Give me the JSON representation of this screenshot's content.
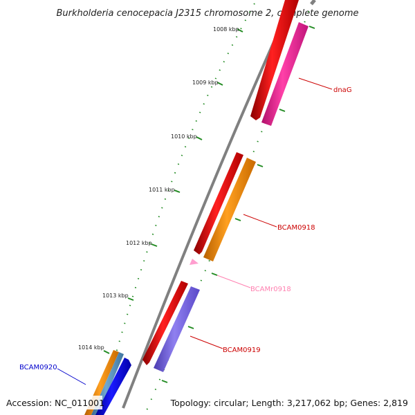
{
  "title": "Burkholderia cenocepacia J2315 chromosome 2, complete genome",
  "footer": {
    "accession": "Accession: NC_011001",
    "summary": "Topology: circular; Length: 3,217,062 bp; Genes: 2,819"
  },
  "ruler": {
    "labels": [
      "1008 kbp",
      "1009 kbp",
      "1010 kbp",
      "1011 kbp",
      "1012 kbp",
      "1013 kbp",
      "1014 kbp"
    ],
    "tick_color": "#228b22"
  },
  "backbone_color": "#808080",
  "genes": [
    {
      "label": "dnaG",
      "color": "#ff1493",
      "label_color": "#cc0000",
      "feature_color": "#ff0000"
    },
    {
      "label": "BCAM0918",
      "color": "#ff8c00",
      "label_color": "#cc0000",
      "feature_color": "#ff0000"
    },
    {
      "label": "BCAMr0918",
      "color": "#ff9ecf",
      "label_color": "#ff80b0",
      "feature_color": "#ff9ecf"
    },
    {
      "label": "BCAM0919",
      "color": "#7b68ee",
      "label_color": "#cc0000",
      "feature_color": "#ff0000"
    },
    {
      "label": "BCAM0920",
      "color": "#0000ee",
      "label_color": "#0000cc",
      "feature_color": "#ff8c00"
    }
  ]
}
